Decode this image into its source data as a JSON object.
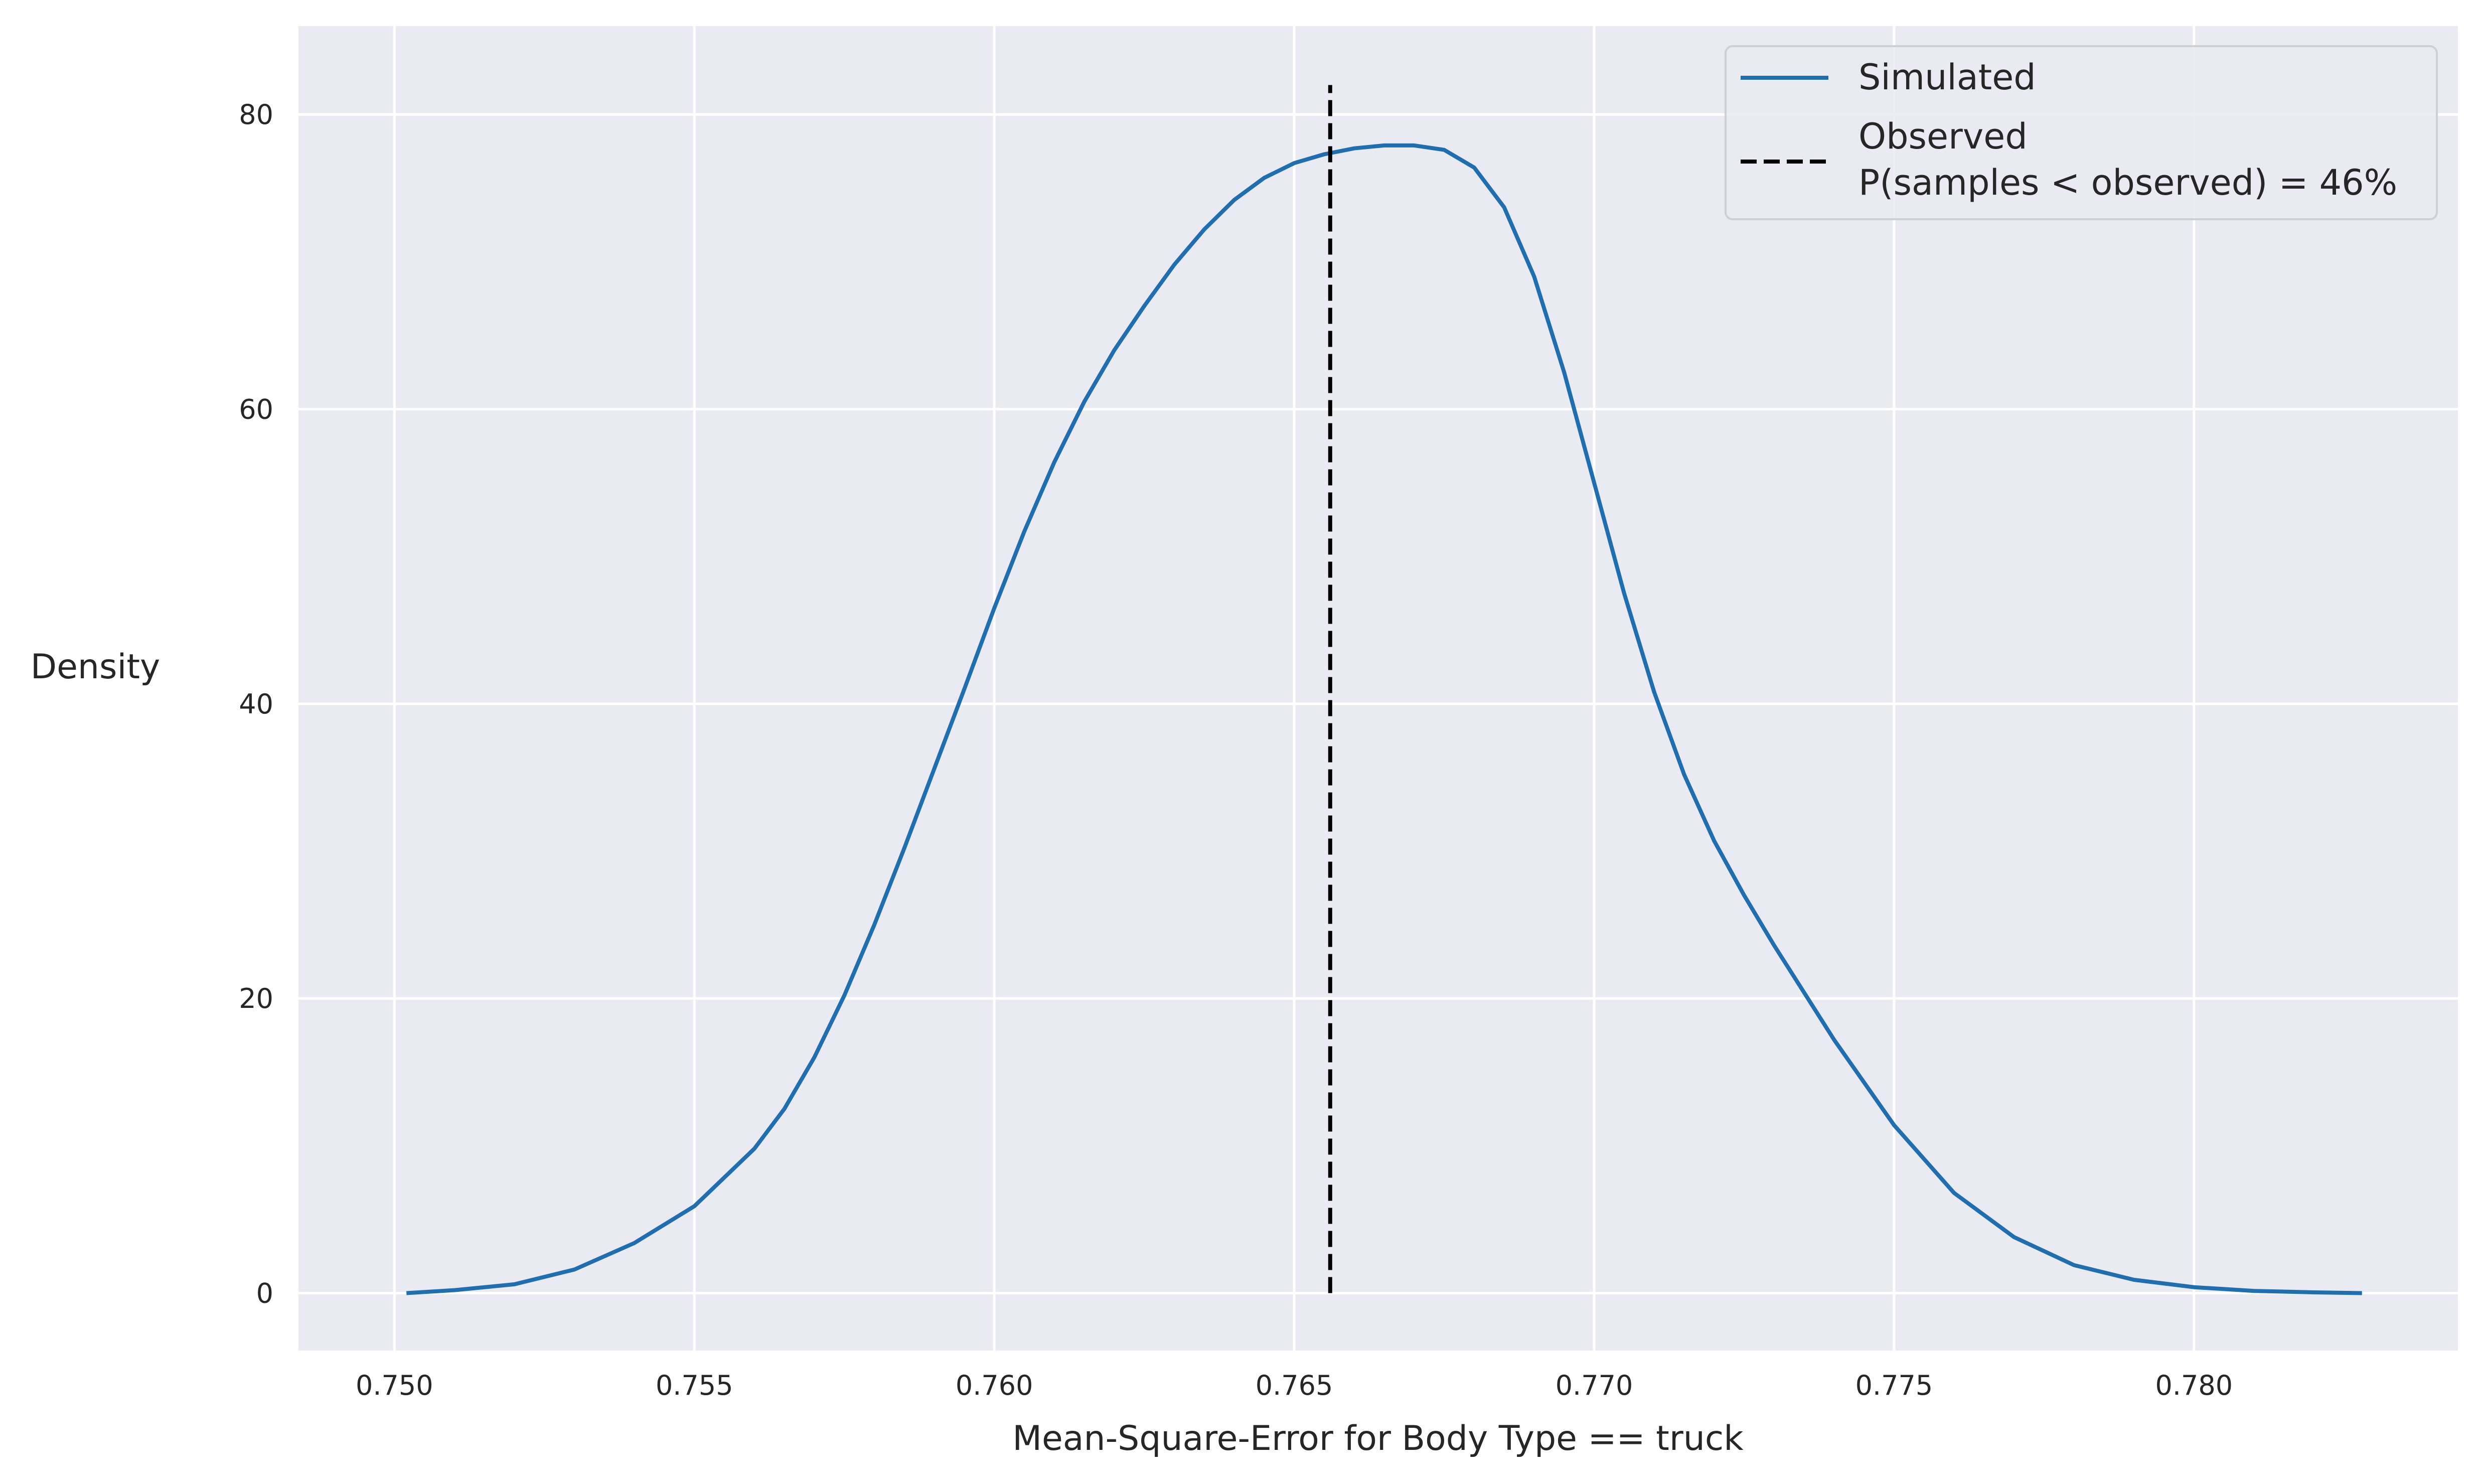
{
  "chart_data": {
    "type": "line",
    "title": "",
    "xlabel": "Mean-Square-Error for Body Type == truck",
    "ylabel": "Density",
    "xlim": [
      0.7484,
      0.7844
    ],
    "ylim": [
      -3.9,
      86
    ],
    "x_ticks": [
      0.75,
      0.755,
      0.76,
      0.765,
      0.77,
      0.775,
      0.78
    ],
    "x_tick_labels": [
      "0.750",
      "0.755",
      "0.760",
      "0.765",
      "0.770",
      "0.775",
      "0.780"
    ],
    "y_ticks": [
      0,
      20,
      40,
      60,
      80
    ],
    "y_tick_labels": [
      "0",
      "20",
      "40",
      "60",
      "80"
    ],
    "grid": true,
    "legend_position": "top-right",
    "series": [
      {
        "name": "Simulated",
        "style": "solid",
        "color": "#1f6fb0",
        "x": [
          0.7502,
          0.751,
          0.752,
          0.753,
          0.754,
          0.755,
          0.756,
          0.7565,
          0.757,
          0.7575,
          0.758,
          0.7585,
          0.759,
          0.7595,
          0.76,
          0.7605,
          0.761,
          0.7615,
          0.762,
          0.7625,
          0.763,
          0.7635,
          0.764,
          0.7645,
          0.765,
          0.7655,
          0.766,
          0.7665,
          0.767,
          0.7675,
          0.768,
          0.7685,
          0.769,
          0.7695,
          0.77,
          0.7705,
          0.771,
          0.7715,
          0.772,
          0.7725,
          0.773,
          0.774,
          0.775,
          0.776,
          0.777,
          0.778,
          0.779,
          0.78,
          0.781,
          0.782,
          0.7828
        ],
        "y": [
          0.0,
          0.2,
          0.6,
          1.6,
          3.4,
          5.9,
          9.8,
          12.5,
          16.0,
          20.2,
          25.0,
          30.2,
          35.6,
          41.0,
          46.5,
          51.7,
          56.4,
          60.5,
          64.0,
          67.0,
          69.8,
          72.2,
          74.2,
          75.7,
          76.7,
          77.3,
          77.7,
          77.9,
          77.9,
          77.6,
          76.4,
          73.7,
          69.0,
          62.5,
          55.0,
          47.5,
          40.8,
          35.2,
          30.7,
          27.0,
          23.6,
          17.2,
          11.4,
          6.8,
          3.8,
          1.9,
          0.9,
          0.4,
          0.15,
          0.05,
          0.0
        ]
      },
      {
        "name": "Observed\nP(samples < observed) = 46%",
        "legend_lines": [
          "Observed",
          "P(samples < observed) = 46%"
        ],
        "style": "dashed",
        "color": "#000000",
        "x": [
          0.7656,
          0.7656
        ],
        "y": [
          0,
          82
        ]
      }
    ]
  },
  "colors": {
    "plot_background": "#eaeaf2",
    "grid": "#ffffff",
    "simulated_line": "#1f6fb0",
    "observed_line": "#000000"
  }
}
